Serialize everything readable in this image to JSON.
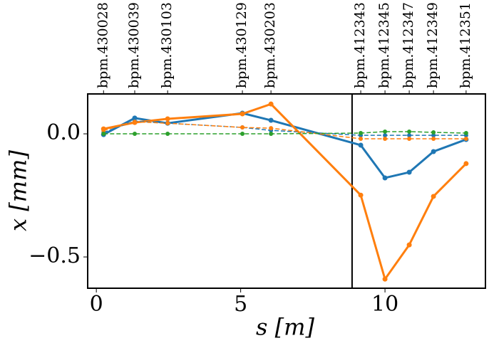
{
  "chart_data": {
    "type": "line",
    "xlabel": "s [m]",
    "ylabel": "x [mm]",
    "x": [
      0.25,
      1.33,
      2.47,
      5.06,
      6.05,
      9.16,
      10.0,
      10.84,
      11.68,
      12.81
    ],
    "series": [
      {
        "color": "#1f77b4",
        "linestyle": "solid",
        "values": [
          -0.003,
          0.064,
          0.043,
          0.084,
          0.055,
          -0.046,
          -0.179,
          -0.156,
          -0.072,
          -0.023
        ]
      },
      {
        "color": "#ff7f0e",
        "linestyle": "solid",
        "values": [
          0.02,
          0.046,
          0.061,
          0.081,
          0.121,
          -0.249,
          -0.59,
          -0.451,
          -0.254,
          -0.121
        ]
      },
      {
        "color": "#1f77b4",
        "linestyle": "dashed",
        "values": [
          0.006,
          0.052,
          0.043,
          0.026,
          0.014,
          -0.006,
          -0.006,
          -0.006,
          -0.006,
          -0.006
        ]
      },
      {
        "color": "#ff7f0e",
        "linestyle": "dashed",
        "values": [
          0.014,
          0.049,
          0.043,
          0.026,
          0.023,
          -0.02,
          -0.02,
          -0.02,
          -0.02,
          -0.02
        ]
      },
      {
        "color": "#2ca02c",
        "linestyle": "dashed",
        "values": [
          0,
          0,
          0,
          0,
          0,
          0.003,
          0.009,
          0.009,
          0.006,
          0.003
        ]
      }
    ],
    "xlim": [
      -0.3,
      13.48
    ],
    "ylim": [
      -0.627,
      0.162
    ],
    "xticks": [
      0,
      5,
      10
    ],
    "yticks": [
      {
        "value": 0,
        "label": "0.0"
      },
      {
        "value": -0.5,
        "label": "−0.5"
      }
    ],
    "top_ticks": [
      {
        "value": 0.25,
        "label": "bpm.430028"
      },
      {
        "value": 1.33,
        "label": "bpm.430039"
      },
      {
        "value": 2.47,
        "label": "bpm.430103"
      },
      {
        "value": 5.06,
        "label": "bpm.430129"
      },
      {
        "value": 6.05,
        "label": "bpm.430203"
      },
      {
        "value": 9.16,
        "label": "bpm.412343"
      },
      {
        "value": 10.0,
        "label": "bpm.412345"
      },
      {
        "value": 10.84,
        "label": "bpm.412347"
      },
      {
        "value": 11.68,
        "label": "bpm.412349"
      },
      {
        "value": 12.81,
        "label": "bpm.412351"
      }
    ],
    "vline": 8.86
  }
}
